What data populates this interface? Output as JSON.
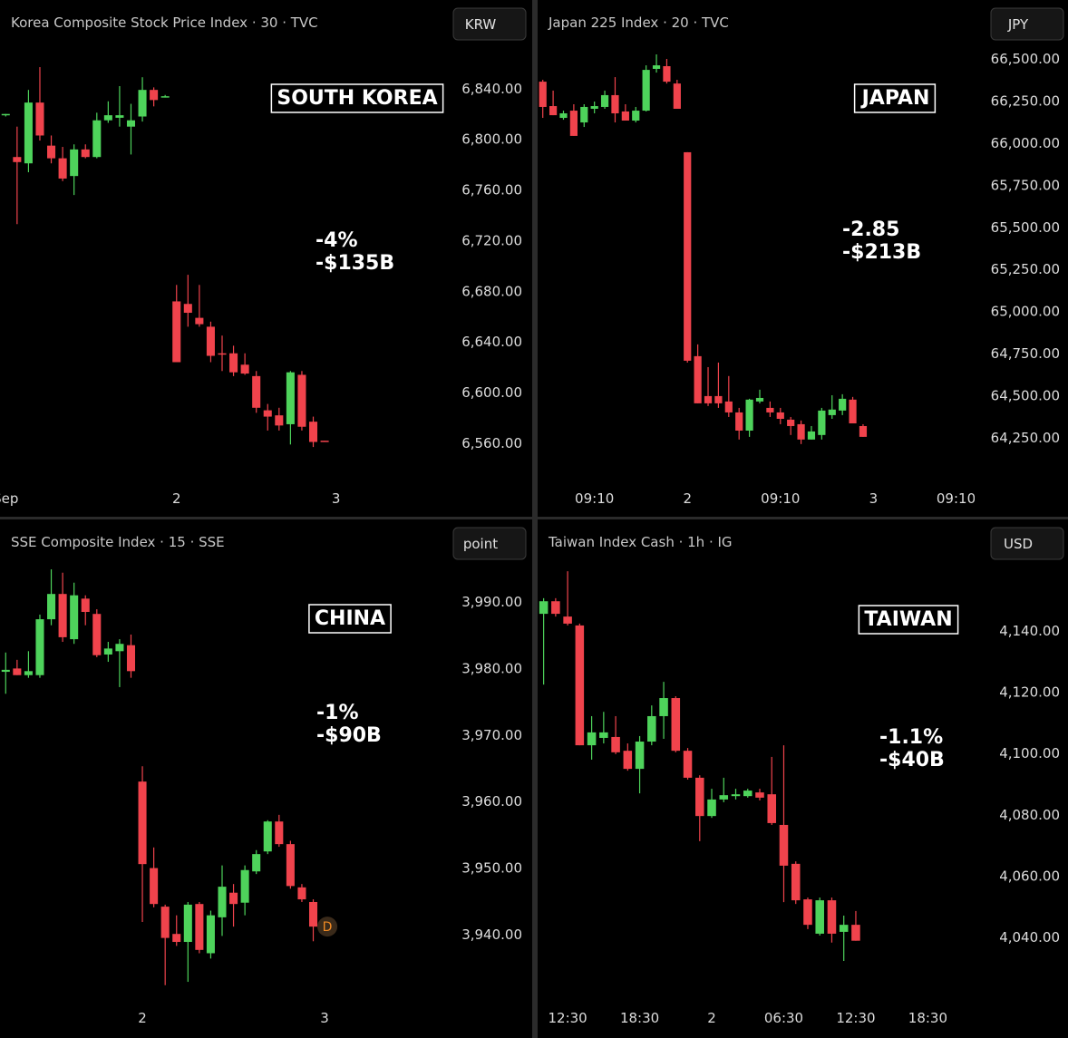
{
  "chart_data": [
    {
      "type": "candlestick",
      "title": "Korea Composite Stock Price Index · 30 · TVC",
      "currency": "KRW",
      "label": "SOUTH KOREA",
      "annotations": [
        "-4%",
        "-$135B"
      ],
      "categories": [
        "Sep",
        null,
        null,
        null,
        null,
        null,
        null,
        null,
        null,
        null,
        null,
        null,
        null,
        null,
        null,
        "2",
        null,
        null,
        null,
        null,
        null,
        null,
        null,
        null,
        null,
        null,
        null,
        null,
        null,
        "3",
        null,
        null,
        null,
        null,
        null,
        null,
        null,
        null,
        null
      ],
      "open": [
        6819,
        6786,
        6781,
        6829,
        6795,
        6785,
        6771,
        6792,
        6786,
        6815,
        6817,
        6810,
        6818,
        6839,
        6833,
        6672,
        6670,
        6659,
        6652,
        6631,
        6631,
        6622,
        6613,
        6586,
        6582,
        6575,
        6614,
        6577,
        6562,
        null,
        null,
        null,
        null,
        null,
        null,
        null,
        null,
        null,
        null
      ],
      "high": [
        6820,
        6810,
        6839,
        6857,
        6803,
        6794,
        6796,
        6796,
        6821,
        6830,
        6842,
        6828,
        6849,
        6841,
        6835,
        6685,
        6693,
        6685,
        6656,
        6645,
        6637,
        6631,
        6617,
        6591,
        6588,
        6617,
        6617,
        6581,
        6562,
        null,
        null,
        null,
        null,
        null,
        null,
        null,
        null,
        null,
        null
      ],
      "low": [
        6818,
        6733,
        6774,
        6799,
        6781,
        6767,
        6756,
        6785,
        6785,
        6813,
        6810,
        6788,
        6814,
        6826,
        6833,
        6624,
        6652,
        6652,
        6624,
        6617,
        6613,
        6614,
        6584,
        6570,
        6570,
        6559,
        6570,
        6557,
        6561,
        null,
        null,
        null,
        null,
        null,
        null,
        null,
        null,
        null,
        null
      ],
      "close": [
        6820,
        6782,
        6829,
        6803,
        6785,
        6769,
        6792,
        6786,
        6815,
        6819,
        6819,
        6815,
        6839,
        6831,
        6834,
        6624,
        6663,
        6654,
        6629,
        6630,
        6616,
        6615,
        6588,
        6581,
        6574,
        6616,
        6573,
        6561,
        6561,
        null,
        null,
        null,
        null,
        null,
        null,
        null,
        null,
        null,
        null
      ],
      "ylim": [
        6527,
        6910
      ],
      "yticks": [
        {
          "value": 6560,
          "label": "6,560.00"
        },
        {
          "value": 6600,
          "label": "6,600.00"
        },
        {
          "value": 6640,
          "label": "6,640.00"
        },
        {
          "value": 6680,
          "label": "6,680.00"
        },
        {
          "value": 6720,
          "label": "6,720.00"
        },
        {
          "value": 6760,
          "label": "6,760.00"
        },
        {
          "value": 6800,
          "label": "6,800.00"
        },
        {
          "value": 6840,
          "label": "6,840.00"
        }
      ],
      "up_color": "#4ed35b",
      "down_color": "#f0434c"
    },
    {
      "type": "candlestick",
      "title": "Japan 225 Index · 20 · TVC",
      "currency": "JPY",
      "label": "JAPAN",
      "annotations": [
        "-2.85",
        "-$213B"
      ],
      "categories": [
        null,
        null,
        null,
        null,
        null,
        "09:10",
        null,
        null,
        null,
        null,
        null,
        null,
        null,
        null,
        "2",
        null,
        null,
        null,
        null,
        null,
        null,
        null,
        null,
        "09:10",
        null,
        null,
        null,
        null,
        null,
        null,
        null,
        null,
        "3",
        null,
        null,
        null,
        null,
        null,
        null,
        null,
        "09:10",
        null,
        null
      ],
      "open": [
        66365,
        66220,
        66150,
        66193,
        66123,
        66204,
        66215,
        66285,
        66188,
        66134,
        66193,
        66441,
        66457,
        66354,
        65946,
        64735,
        64498,
        64498,
        64466,
        64401,
        64293,
        64466,
        64428,
        64401,
        64358,
        64331,
        64240,
        64267,
        64385,
        64412,
        64477,
        64320,
        null,
        null,
        null,
        null,
        null,
        null,
        null,
        null,
        null,
        null,
        null
      ],
      "high": [
        66376,
        66312,
        66193,
        66231,
        66231,
        66247,
        66312,
        66392,
        66231,
        66215,
        66462,
        66527,
        66500,
        66376,
        65946,
        64805,
        64670,
        64697,
        64617,
        64428,
        64482,
        64536,
        64466,
        64428,
        64374,
        64353,
        64320,
        64428,
        64503,
        64509,
        64493,
        64331,
        null,
        null,
        null,
        null,
        null,
        null,
        null,
        null,
        null,
        null,
        null
      ],
      "low": [
        66150,
        66166,
        66139,
        66043,
        66096,
        66177,
        66204,
        66123,
        66134,
        66123,
        66188,
        66419,
        66354,
        66204,
        64697,
        64455,
        64439,
        64428,
        64374,
        64240,
        64256,
        64455,
        64374,
        64331,
        64267,
        64213,
        64240,
        64240,
        64363,
        64385,
        64336,
        64256,
        null,
        null,
        null,
        null,
        null,
        null,
        null,
        null,
        null,
        null,
        null
      ],
      "close": [
        66215,
        66166,
        66177,
        66043,
        66215,
        66220,
        66285,
        66177,
        66134,
        66193,
        66435,
        66462,
        66365,
        66204,
        64708,
        64455,
        64455,
        64455,
        64401,
        64293,
        64477,
        64487,
        64401,
        64363,
        64320,
        64240,
        64288,
        64412,
        64418,
        64482,
        64336,
        64256,
        null,
        null,
        null,
        null,
        null,
        null,
        null,
        null,
        null,
        null,
        null
      ],
      "ylim": [
        63970,
        66850
      ],
      "yticks": [
        {
          "value": 64250,
          "label": "64,250.00"
        },
        {
          "value": 64500,
          "label": "64,500.00"
        },
        {
          "value": 64750,
          "label": "64,750.00"
        },
        {
          "value": 65000,
          "label": "65,000.00"
        },
        {
          "value": 65250,
          "label": "65,250.00"
        },
        {
          "value": 65500,
          "label": "65,500.00"
        },
        {
          "value": 65750,
          "label": "65,750.00"
        },
        {
          "value": 66000,
          "label": "66,000.00"
        },
        {
          "value": 66250,
          "label": "66,250.00"
        },
        {
          "value": 66500,
          "label": "66,500.00"
        }
      ],
      "up_color": "#4ed35b",
      "down_color": "#f0434c"
    },
    {
      "type": "candlestick",
      "title": "SSE Composite Index · 15 · SSE",
      "currency": "point",
      "label": "CHINA",
      "annotations": [
        "-1%",
        "-$90B"
      ],
      "marker": "D",
      "categories": [
        null,
        null,
        null,
        null,
        null,
        null,
        null,
        null,
        null,
        null,
        null,
        null,
        "2",
        null,
        null,
        null,
        null,
        null,
        null,
        null,
        null,
        null,
        null,
        null,
        null,
        null,
        null,
        null,
        "3",
        null,
        null,
        null,
        null,
        null,
        null,
        null,
        null,
        null,
        null
      ],
      "open": [
        3979.5,
        3980,
        3979,
        3979,
        3987.4,
        3991.2,
        3984.4,
        3990.5,
        3988.2,
        3982.1,
        3982.6,
        3983.5,
        3963,
        3950,
        3944.2,
        3940.1,
        3938.9,
        3944.6,
        3937.2,
        3942.6,
        3946.3,
        3944.8,
        3949.5,
        3952.5,
        3957,
        3953.6,
        3947.1,
        3944.9,
        null,
        null,
        null,
        null,
        null,
        null,
        null,
        null,
        null,
        null,
        null
      ],
      "high": [
        3982.4,
        3981.3,
        3982.6,
        3988.1,
        3994.9,
        3994.4,
        3992.9,
        3991,
        3988.9,
        3984,
        3984.4,
        3985.1,
        3965.3,
        3953.1,
        3944.5,
        3942.9,
        3944.9,
        3944.9,
        3943.6,
        3950.4,
        3947.6,
        3950.4,
        3952.7,
        3957.2,
        3958,
        3954.1,
        3947.6,
        3945.3,
        null,
        null,
        null,
        null,
        null,
        null,
        null,
        null,
        null,
        null,
        null
      ],
      "low": [
        3976.2,
        3979,
        3978.6,
        3978.6,
        3986.5,
        3984,
        3983.7,
        3986.5,
        3981.7,
        3981,
        3977.2,
        3978.6,
        3941.9,
        3944.1,
        3932.4,
        3938.3,
        3932.9,
        3937.2,
        3936.4,
        3939.8,
        3941.2,
        3942.9,
        3949.1,
        3952.1,
        3953.2,
        3946.9,
        3944.9,
        3939,
        null,
        null,
        null,
        null,
        null,
        null,
        null,
        null,
        null,
        null,
        null
      ],
      "close": [
        3979.8,
        3979,
        3979.6,
        3987.4,
        3991.2,
        3984.7,
        3991,
        3988.5,
        3982,
        3983,
        3983.7,
        3979.6,
        3950.6,
        3944.6,
        3939.5,
        3938.9,
        3944.5,
        3937.7,
        3942.9,
        3947.2,
        3944.6,
        3949.7,
        3952.1,
        3957,
        3953.6,
        3947.3,
        3945.3,
        3941.2,
        null,
        null,
        null,
        null,
        null,
        null,
        null,
        null,
        null,
        null,
        null
      ],
      "ylim": [
        3929.5,
        4002.4
      ],
      "yticks": [
        {
          "value": 3940,
          "label": "3,940.00"
        },
        {
          "value": 3950,
          "label": "3,950.00"
        },
        {
          "value": 3960,
          "label": "3,960.00"
        },
        {
          "value": 3970,
          "label": "3,970.00"
        },
        {
          "value": 3980,
          "label": "3,980.00"
        },
        {
          "value": 3990,
          "label": "3,990.00"
        }
      ],
      "up_color": "#4ed35b",
      "down_color": "#f0434c"
    },
    {
      "type": "candlestick",
      "title": "Taiwan Index Cash · 1h · IG",
      "currency": "USD",
      "label": "TAIWAN",
      "annotations": [
        "-1.1%",
        "-$40B"
      ],
      "categories": [
        null,
        null,
        "12:30",
        null,
        null,
        null,
        null,
        null,
        "18:30",
        null,
        null,
        null,
        null,
        null,
        "2",
        null,
        null,
        null,
        null,
        null,
        "06:30",
        null,
        null,
        null,
        null,
        null,
        "12:30",
        null,
        null,
        null,
        null,
        null,
        "18:30",
        null,
        null,
        null,
        null
      ],
      "open": [
        4145.6,
        4149.7,
        4144.7,
        4141.8,
        4102.7,
        4105.1,
        4105.4,
        4100.9,
        4095,
        4103.9,
        4112.2,
        4118.1,
        4100.9,
        4092.1,
        4079.6,
        4085,
        4086.1,
        4086.1,
        4087.3,
        4086.7,
        4076.7,
        4064,
        4052.4,
        4041.2,
        4052.1,
        4041.8,
        4044.1,
        null,
        null,
        null,
        null,
        null,
        null,
        null,
        null,
        null,
        null
      ],
      "high": [
        4150.7,
        4150.7,
        4159.5,
        4142.4,
        4112.2,
        4113.6,
        4112.2,
        4103.3,
        4105.7,
        4115.7,
        4123.4,
        4118.7,
        4101.8,
        4092.9,
        4088.5,
        4092.1,
        4088.5,
        4088.5,
        4088.5,
        4098.9,
        4102.7,
        4064.8,
        4053,
        4053,
        4053,
        4047.1,
        4048.6,
        null,
        null,
        null,
        null,
        null,
        null,
        null,
        null,
        null,
        null
      ],
      "low": [
        4122.5,
        4144.7,
        4141.8,
        4102.7,
        4098,
        4103.3,
        4099.8,
        4094.4,
        4087,
        4102.7,
        4104.8,
        4100.4,
        4091.5,
        4071.4,
        4079,
        4084.1,
        4085,
        4085.6,
        4084.7,
        4076.7,
        4051.5,
        4050.9,
        4042.7,
        4040.6,
        4038.3,
        4032.3,
        4038.9,
        null,
        null,
        null,
        null,
        null,
        null,
        null,
        null,
        null,
        null
      ],
      "close": [
        4149.7,
        4145.6,
        4142.4,
        4102.7,
        4106.9,
        4106.9,
        4100.4,
        4095,
        4103.9,
        4112.2,
        4118.1,
        4100.9,
        4092.1,
        4079.6,
        4085,
        4086.4,
        4086.7,
        4087.9,
        4085.6,
        4077.3,
        4063.4,
        4052.1,
        4044.1,
        4052.1,
        4041.2,
        4044.1,
        4038.9,
        null,
        null,
        null,
        null,
        null,
        null,
        null,
        null,
        null,
        null
      ],
      "ylim": [
        4018.1,
        4176.4
      ],
      "yticks": [
        {
          "value": 4040,
          "label": "4,040.00"
        },
        {
          "value": 4060,
          "label": "4,060.00"
        },
        {
          "value": 4080,
          "label": "4,080.00"
        },
        {
          "value": 4100,
          "label": "4,100.00"
        },
        {
          "value": 4120,
          "label": "4,120.00"
        },
        {
          "value": 4140,
          "label": "4,140.00"
        }
      ],
      "up_color": "#4ed35b",
      "down_color": "#f0434c"
    }
  ]
}
